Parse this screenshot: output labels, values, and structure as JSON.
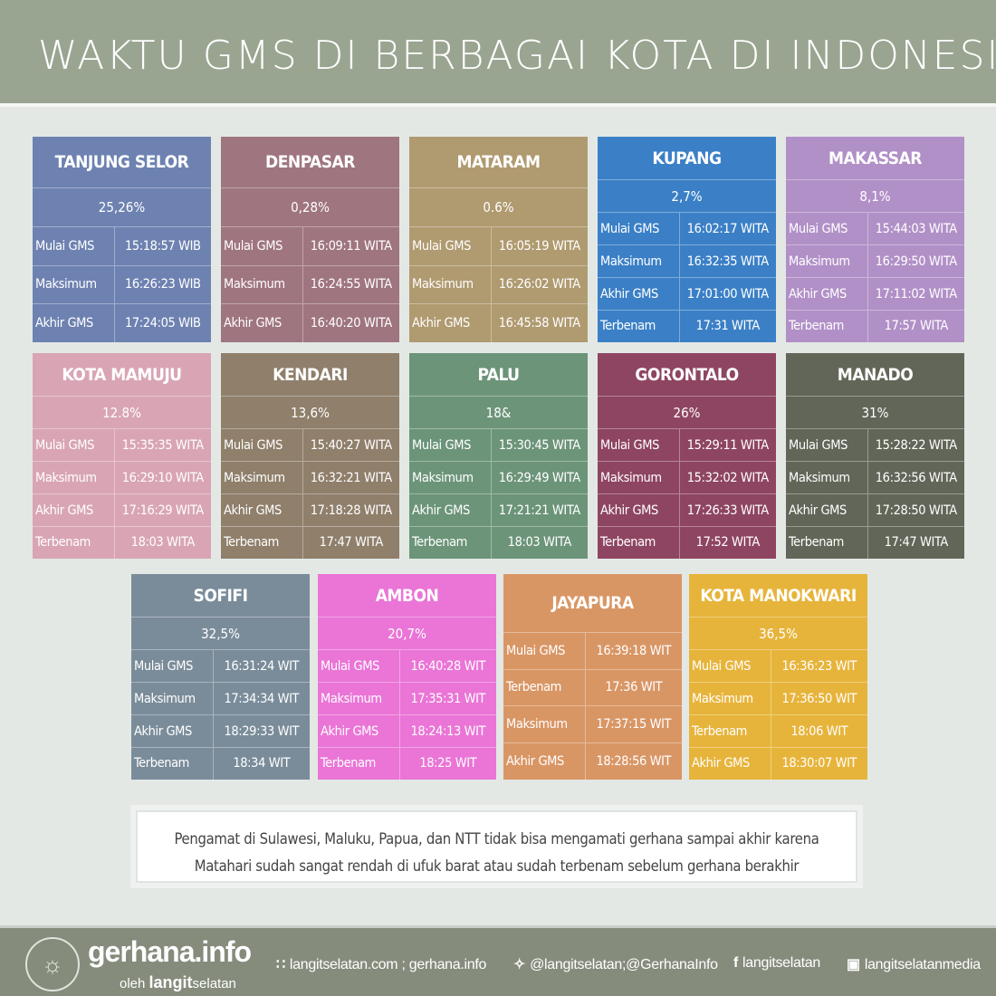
{
  "header": {
    "title": "WAKTU GMS DI BERBAGAI KOTA DI INDONESIA"
  },
  "colors": {
    "header_bg": "#9aa591",
    "page_bg": "#e3e8e5",
    "footer_bg": "#858c7c"
  },
  "cities": [
    {
      "name": "TANJUNG SELOR",
      "percent": "25,26%",
      "color": "#6e82b1",
      "rows": [
        [
          "Mulai GMS",
          "15:18:57 WIB"
        ],
        [
          "Maksimum",
          "16:26:23 WIB"
        ],
        [
          "Akhir GMS",
          "17:24:05 WIB"
        ]
      ]
    },
    {
      "name": "DENPASAR",
      "percent": "0,28%",
      "color": "#9f757f",
      "rows": [
        [
          "Mulai GMS",
          "16:09:11 WITA"
        ],
        [
          "Maksimum",
          "16:24:55 WITA"
        ],
        [
          "Akhir GMS",
          "16:40:20 WITA"
        ]
      ]
    },
    {
      "name": "MATARAM",
      "percent": "0.6%",
      "color": "#b09a70",
      "rows": [
        [
          "Mulai GMS",
          "16:05:19 WITA"
        ],
        [
          "Maksimum",
          "16:26:02 WITA"
        ],
        [
          "Akhir GMS",
          "16:45:58 WITA"
        ]
      ]
    },
    {
      "name": "KUPANG",
      "percent": "2,7%",
      "color": "#3b80c6",
      "rows": [
        [
          "Mulai GMS",
          "16:02:17 WITA"
        ],
        [
          "Maksimum",
          "16:32:35 WITA"
        ],
        [
          "Akhir GMS",
          "17:01:00 WITA"
        ],
        [
          "Terbenam",
          "17:31 WITA"
        ]
      ]
    },
    {
      "name": "MAKASSAR",
      "percent": "8,1%",
      "color": "#b190c7",
      "rows": [
        [
          "Mulai GMS",
          "15:44:03 WITA"
        ],
        [
          "Maksimum",
          "16:29:50 WITA"
        ],
        [
          "Akhir GMS",
          "17:11:02 WITA"
        ],
        [
          "Terbenam",
          "17:57 WITA"
        ]
      ]
    },
    {
      "name": "KOTA MAMUJU",
      "percent": "12.8%",
      "color": "#d9a5b5",
      "rows": [
        [
          "Mulai GMS",
          "15:35:35 WITA"
        ],
        [
          "Maksimum",
          "16:29:10 WITA"
        ],
        [
          "Akhir GMS",
          "17:16:29 WITA"
        ],
        [
          "Terbenam",
          "18:03 WITA"
        ]
      ]
    },
    {
      "name": "KENDARI",
      "percent": "13,6%",
      "color": "#8f7f6b",
      "rows": [
        [
          "Mulai GMS",
          "15:40:27 WITA"
        ],
        [
          "Maksimum",
          "16:32:21 WITA"
        ],
        [
          "Akhir GMS",
          "17:18:28 WITA"
        ],
        [
          "Terbenam",
          "17:47 WITA"
        ]
      ]
    },
    {
      "name": "PALU",
      "percent": "18&",
      "color": "#6c9479",
      "rows": [
        [
          "Mulai GMS",
          "15:30:45 WITA"
        ],
        [
          "Maksimum",
          "16:29:49 WITA"
        ],
        [
          "Akhir GMS",
          "17:21:21 WITA"
        ],
        [
          "Terbenam",
          "18:03 WITA"
        ]
      ]
    },
    {
      "name": "GORONTALO",
      "percent": "26%",
      "color": "#8e4562",
      "rows": [
        [
          "Mulai GMS",
          "15:29:11 WITA"
        ],
        [
          "Maksimum",
          "15:32:02 WITA"
        ],
        [
          "Akhir GMS",
          "17:26:33 WITA"
        ],
        [
          "Terbenam",
          "17:52 WITA"
        ]
      ]
    },
    {
      "name": "MANADO",
      "percent": "31%",
      "color": "#626658",
      "rows": [
        [
          "Mulai GMS",
          "15:28:22 WITA"
        ],
        [
          "Maksimum",
          "16:32:56 WITA"
        ],
        [
          "Akhir GMS",
          "17:28:50 WITA"
        ],
        [
          "Terbenam",
          "17:47 WITA"
        ]
      ]
    },
    {
      "name": "SOFIFI",
      "percent": "32,5%",
      "color": "#7a8c9a",
      "rows": [
        [
          "Mulai GMS",
          "16:31:24 WIT"
        ],
        [
          "Maksimum",
          "17:34:34 WIT"
        ],
        [
          "Akhir GMS",
          "18:29:33 WIT"
        ],
        [
          "Terbenam",
          "18:34 WIT"
        ]
      ]
    },
    {
      "name": "AMBON",
      "percent": "20,7%",
      "color": "#ea75d6",
      "rows": [
        [
          "Mulai GMS",
          "16:40:28 WIT"
        ],
        [
          "Maksimum",
          "17:35:31 WIT"
        ],
        [
          "Akhir GMS",
          "18:24:13 WIT"
        ],
        [
          "Terbenam",
          "18:25 WIT"
        ]
      ]
    },
    {
      "name": "JAYAPURA",
      "color": "#d99665",
      "rows": [
        [
          "Mulai GMS",
          "16:39:18 WIT"
        ],
        [
          "Terbenam",
          "17:36 WIT"
        ],
        [
          "Maksimum",
          "17:37:15 WIT"
        ],
        [
          "Akhir GMS",
          "18:28:56 WIT"
        ]
      ]
    },
    {
      "name": "KOTA MANOKWARI",
      "percent": "36,5%",
      "color": "#e7b43b",
      "rows": [
        [
          "Mulai GMS",
          "16:36:23 WIT"
        ],
        [
          "Maksimum",
          "17:36:50 WIT"
        ],
        [
          "Terbenam",
          "18:06 WIT"
        ],
        [
          "Akhir GMS",
          "18:30:07 WIT"
        ]
      ]
    }
  ],
  "note": {
    "line1": "Pengamat di Sulawesi, Maluku, Papua, dan NTT  tidak bisa mengamati gerhana sampai akhir karena",
    "line2": "Matahari sudah sangat rendah di ufuk barat atau sudah terbenam sebelum gerhana berakhir"
  },
  "footer": {
    "logo_text": "LANGITSELATAN",
    "brand": "gerhana.info",
    "by": "oleh",
    "by_bold": "langit",
    "by_rest": "selatan",
    "links": [
      {
        "icon": "rss-icon",
        "glyph": "∷",
        "text": "langitselatan.com ; gerhana.info"
      },
      {
        "icon": "twitter-icon",
        "glyph": "✧",
        "text": "@langitselatan;@GerhanaInfo"
      },
      {
        "icon": "facebook-icon",
        "glyph": "f",
        "text": "langitselatan"
      },
      {
        "icon": "instagram-icon",
        "glyph": "▣",
        "text": "langitselatanmedia"
      }
    ]
  }
}
